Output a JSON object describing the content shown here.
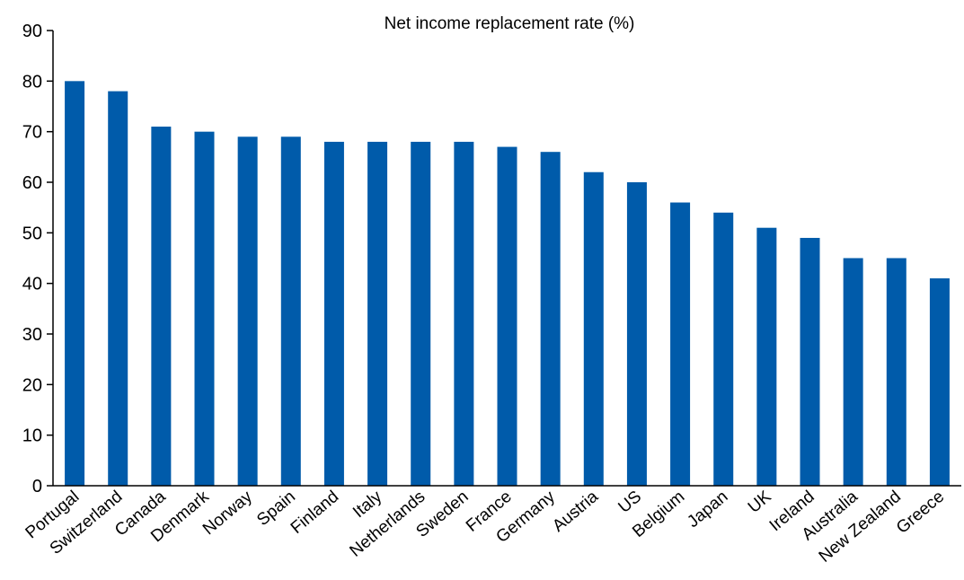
{
  "chart_data": {
    "type": "bar",
    "title": "Net income replacement rate (%)",
    "xlabel": "",
    "ylabel": "",
    "ylim": [
      0,
      90
    ],
    "yticks": [
      0,
      10,
      20,
      30,
      40,
      50,
      60,
      70,
      80,
      90
    ],
    "grid": false,
    "bar_color": "#005BAA",
    "categories": [
      "Portugal",
      "Switzerland",
      "Canada",
      "Denmark",
      "Norway",
      "Spain",
      "Finland",
      "Italy",
      "Netherlands",
      "Sweden",
      "France",
      "Germany",
      "Austria",
      "US",
      "Belgium",
      "Japan",
      "UK",
      "Ireland",
      "Australia",
      "New Zealand",
      "Greece"
    ],
    "values": [
      80,
      78,
      71,
      70,
      69,
      69,
      68,
      68,
      68,
      68,
      67,
      66,
      62,
      60,
      56,
      54,
      51,
      49,
      45,
      45,
      41
    ]
  }
}
